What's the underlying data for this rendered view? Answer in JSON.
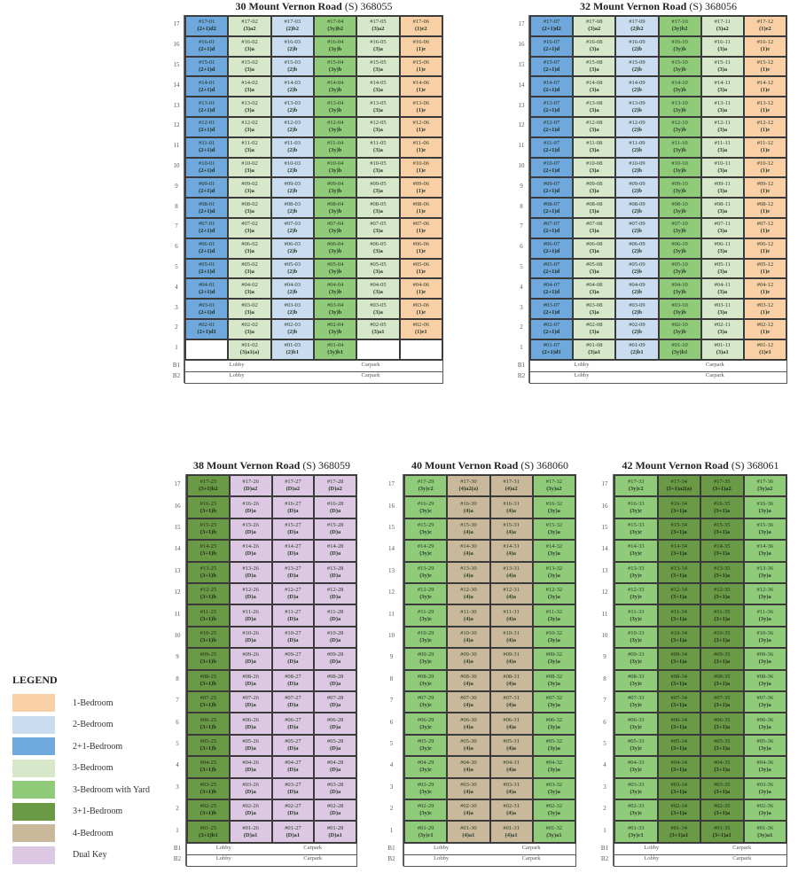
{
  "legend": {
    "title": "LEGEND",
    "items": [
      {
        "key": "1br",
        "label": "1-Bedroom",
        "color": "#f9cfa6"
      },
      {
        "key": "2br",
        "label": "2-Bedroom",
        "color": "#c9dcf0"
      },
      {
        "key": "2p1",
        "label": "2+1-Bedroom",
        "color": "#6fa8dc"
      },
      {
        "key": "3br",
        "label": "3-Bedroom",
        "color": "#d6e8c9"
      },
      {
        "key": "3y",
        "label": "3-Bedroom with Yard",
        "color": "#8fcb78"
      },
      {
        "key": "3p1",
        "label": "3+1-Bedroom",
        "color": "#6a9a45"
      },
      {
        "key": "4br",
        "label": "4-Bedroom",
        "color": "#c9b99a"
      },
      {
        "key": "dk",
        "label": "Dual Key",
        "color": "#dcc8e2"
      }
    ]
  },
  "floors": [
    "17",
    "16",
    "15",
    "14",
    "13",
    "12",
    "11",
    "10",
    "9",
    "8",
    "7",
    "6",
    "5",
    "4",
    "3",
    "2",
    "1"
  ],
  "basement": [
    {
      "level": "B1",
      "lobby": "Lobby",
      "carpark": "Carpark"
    },
    {
      "level": "B2",
      "lobby": "Lobby",
      "carpark": "Carpark"
    }
  ],
  "blocks": [
    {
      "name": "30 Mount Vernon Road",
      "postal_prefix": "(S)",
      "postal": "368055",
      "stacks": [
        {
          "stack": "01",
          "cat": "2p1",
          "types": {
            "17": "(2+1)d2",
            "2": "(2+1)d1",
            "1": null,
            "default": "(2+1)d"
          }
        },
        {
          "stack": "02",
          "cat": "3br",
          "types": {
            "17": "(3)a2",
            "1": "(3)a1(a)",
            "default": "(3)a"
          }
        },
        {
          "stack": "03",
          "cat": "2br",
          "types": {
            "17": "(2)b2",
            "1": "(2)b1",
            "default": "(2)b"
          }
        },
        {
          "stack": "04",
          "cat": "3y",
          "types": {
            "17": "(3y)b2",
            "1": "(3y)b1",
            "default": "(3y)b"
          }
        },
        {
          "stack": "05",
          "cat": "3br",
          "types": {
            "17": "(3)a2",
            "2": "(3)a1",
            "1": null,
            "default": "(3)a"
          }
        },
        {
          "stack": "06",
          "cat": "1br",
          "types": {
            "17": "(1)e2",
            "2": "(1)e1",
            "1": null,
            "default": "(1)e"
          }
        }
      ]
    },
    {
      "name": "32 Mount Vernon Road",
      "postal_prefix": "(S)",
      "postal": "368056",
      "stacks": [
        {
          "stack": "07",
          "cat": "2p1",
          "types": {
            "17": "(2+1)d2",
            "1": "(2+1)d1",
            "default": "(2+1)d"
          }
        },
        {
          "stack": "08",
          "cat": "3br",
          "types": {
            "17": "(3)a2",
            "1": "(3)a1",
            "default": "(3)a"
          }
        },
        {
          "stack": "09",
          "cat": "2br",
          "types": {
            "17": "(2)b2",
            "1": "(2)b1",
            "default": "(2)b"
          }
        },
        {
          "stack": "10",
          "cat": "3y",
          "types": {
            "17": "(3y)b2",
            "1": "(3y)b1",
            "default": "(3y)b"
          }
        },
        {
          "stack": "11",
          "cat": "3br",
          "types": {
            "17": "(3)a2",
            "1": "(3)a1",
            "default": "(3)a"
          }
        },
        {
          "stack": "12",
          "cat": "1br",
          "types": {
            "17": "(1)e2",
            "1": "(1)e1",
            "default": "(1)e"
          }
        }
      ]
    },
    {
      "name": "38 Mount Vernon Road",
      "postal_prefix": "(S)",
      "postal": "368059",
      "stacks": [
        {
          "stack": "25",
          "cat": "3p1",
          "types": {
            "17": "(3+1)b2",
            "1": "(3+1)b1",
            "default": "(3+1)b"
          }
        },
        {
          "stack": "26",
          "cat": "dk",
          "types": {
            "17": "(D)a2",
            "1": "(D)a1",
            "default": "(D)a"
          }
        },
        {
          "stack": "27",
          "cat": "dk",
          "types": {
            "17": "(D)a2",
            "1": "(D)a1",
            "default": "(D)a"
          }
        },
        {
          "stack": "28",
          "cat": "dk",
          "types": {
            "17": "(D)a2",
            "1": "(D)a1",
            "default": "(D)a"
          }
        }
      ]
    },
    {
      "name": "40 Mount Vernon Road",
      "postal_prefix": "(S)",
      "postal": "368060",
      "stacks": [
        {
          "stack": "29",
          "cat": "3y",
          "types": {
            "17": "(3y)c2",
            "1": "(3y)c1",
            "default": "(3y)c"
          }
        },
        {
          "stack": "30",
          "cat": "4br",
          "types": {
            "17": "(4)a2(a)",
            "1": "(4)a1",
            "default": "(4)a"
          }
        },
        {
          "stack": "31",
          "cat": "4br",
          "types": {
            "17": "(4)a2",
            "1": "(4)a1",
            "default": "(4)a"
          }
        },
        {
          "stack": "32",
          "cat": "3y",
          "types": {
            "17": "(3y)a2",
            "1": "(3y)a1",
            "default": "(3y)a"
          }
        }
      ]
    },
    {
      "name": "42 Mount Vernon Road",
      "postal_prefix": "(S)",
      "postal": "368061",
      "stacks": [
        {
          "stack": "33",
          "cat": "3y",
          "types": {
            "17": "(3y)c2",
            "1": "(3y)c1",
            "default": "(3y)c"
          }
        },
        {
          "stack": "34",
          "cat": "3p1",
          "types": {
            "17": "(3+1)a2(a)",
            "1": "(3+1)a1",
            "default": "(3+1)a"
          }
        },
        {
          "stack": "35",
          "cat": "3p1",
          "types": {
            "17": "(3+1)a2",
            "1": "(3+1)a1",
            "default": "(3+1)a"
          }
        },
        {
          "stack": "36",
          "cat": "3y",
          "types": {
            "17": "(3y)a2",
            "1": "(3y)a1",
            "default": "(3y)a"
          }
        }
      ]
    }
  ]
}
